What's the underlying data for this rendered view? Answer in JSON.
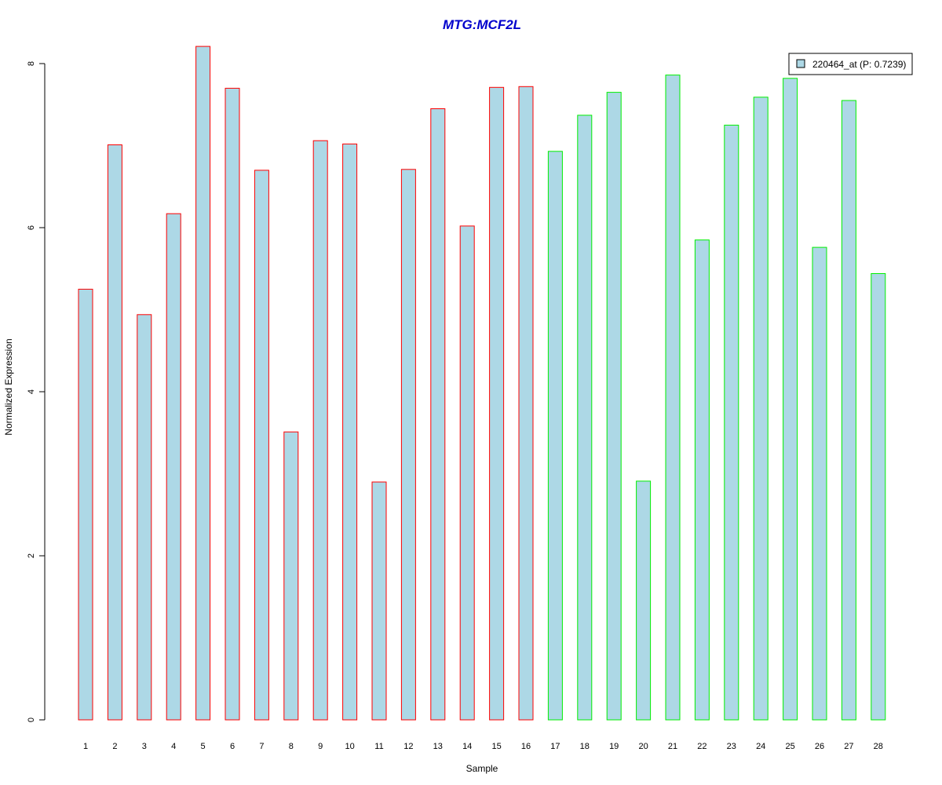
{
  "chart_data": {
    "type": "bar",
    "title": "MTG:MCF2L",
    "xlabel": "Sample",
    "ylabel": "Normalized Expression",
    "ylim": [
      0,
      8.2
    ],
    "yticks": [
      0,
      2,
      4,
      6,
      8
    ],
    "grid": false,
    "legend": {
      "placement": "top-right",
      "label": "220464_at (P: 0.7239)"
    },
    "categories": [
      "1",
      "2",
      "3",
      "4",
      "5",
      "6",
      "7",
      "8",
      "9",
      "10",
      "11",
      "12",
      "13",
      "14",
      "15",
      "16",
      "17",
      "18",
      "19",
      "20",
      "21",
      "22",
      "23",
      "24",
      "25",
      "26",
      "27",
      "28"
    ],
    "values": [
      5.25,
      7.01,
      4.94,
      6.17,
      8.21,
      7.7,
      6.7,
      3.51,
      7.06,
      7.02,
      2.9,
      6.71,
      7.45,
      6.02,
      7.71,
      7.72,
      6.93,
      7.37,
      7.65,
      2.91,
      7.86,
      5.85,
      7.25,
      7.59,
      7.82,
      5.76,
      7.55,
      5.44
    ],
    "groups": [
      {
        "range": [
          1,
          16
        ],
        "border_color": "#ff0000"
      },
      {
        "range": [
          17,
          28
        ],
        "border_color": "#00ee00"
      }
    ],
    "colors": {
      "bar_fill": "#add8e6",
      "title": "#0000cc",
      "axis": "#000000"
    }
  }
}
